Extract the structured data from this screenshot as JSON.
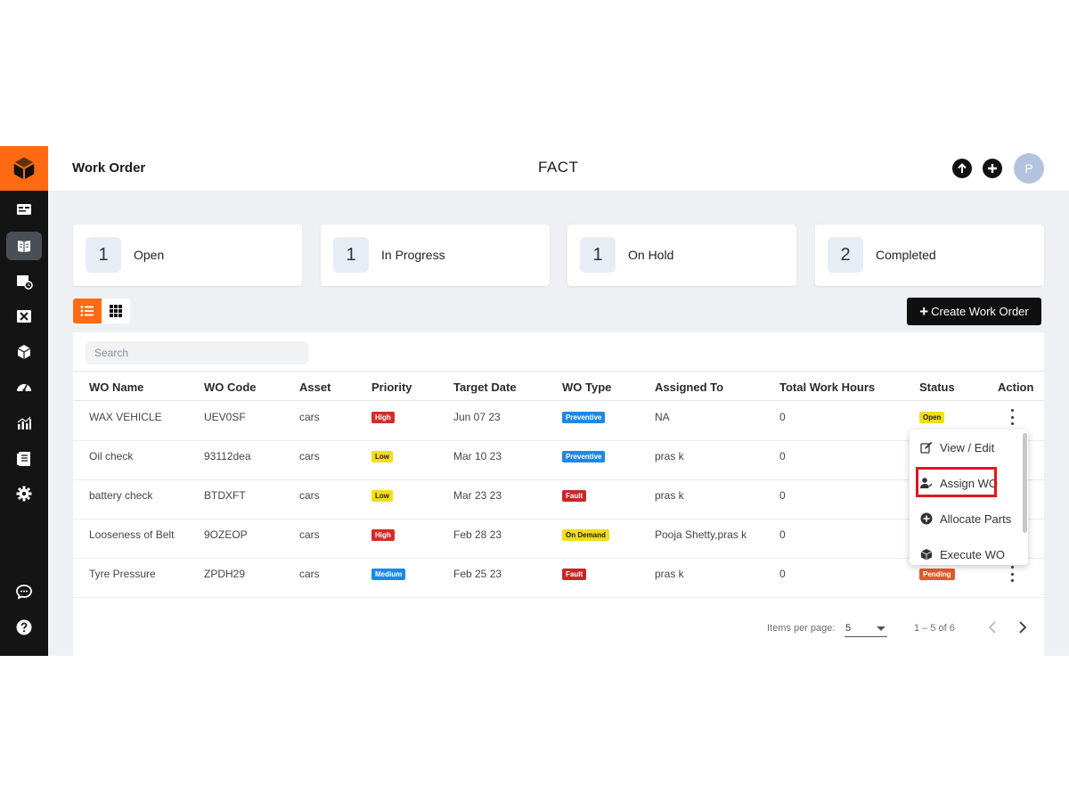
{
  "header": {
    "page_title": "Work Order",
    "center_title": "FACT",
    "avatar_initial": "P"
  },
  "stats": [
    {
      "count": "1",
      "label": "Open"
    },
    {
      "count": "1",
      "label": "In Progress"
    },
    {
      "count": "1",
      "label": "On Hold"
    },
    {
      "count": "2",
      "label": "Completed"
    }
  ],
  "toolbar": {
    "create_label": "Create Work Order"
  },
  "search": {
    "placeholder": "Search"
  },
  "table": {
    "columns": [
      "WO Name",
      "WO Code",
      "Asset",
      "Priority",
      "Target Date",
      "WO Type",
      "Assigned To",
      "Total Work Hours",
      "Status",
      "Action"
    ],
    "rows": [
      {
        "name": "WAX VEHICLE",
        "code": "UEV0SF",
        "asset": "cars",
        "priority": "High",
        "target": "Jun 07 23",
        "type": "Preventive",
        "assigned": "NA",
        "hours": "0",
        "status": "Open"
      },
      {
        "name": "Oil check",
        "code": "93112dea",
        "asset": "cars",
        "priority": "Low",
        "target": "Mar 10 23",
        "type": "Preventive",
        "assigned": "pras k",
        "hours": "0",
        "status": ""
      },
      {
        "name": "battery check",
        "code": "BTDXFT",
        "asset": "cars",
        "priority": "Low",
        "target": "Mar 23 23",
        "type": "Fault",
        "assigned": "pras k",
        "hours": "0",
        "status": ""
      },
      {
        "name": "Looseness of Belt",
        "code": "9OZEOP",
        "asset": "cars",
        "priority": "High",
        "target": "Feb 28 23",
        "type": "On Demand",
        "assigned": "Pooja Shetty,pras k",
        "hours": "0",
        "status": ""
      },
      {
        "name": "Tyre Pressure",
        "code": "ZPDH29",
        "asset": "cars",
        "priority": "Medium",
        "target": "Feb 25 23",
        "type": "Fault",
        "assigned": "pras k",
        "hours": "0",
        "status": "Pending"
      }
    ]
  },
  "pagination": {
    "items_per_page_label": "Items per page:",
    "items_per_page": "5",
    "range": "1 – 5 of 6"
  },
  "action_menu": {
    "items": [
      {
        "label": "View / Edit",
        "icon": "edit-icon"
      },
      {
        "label": "Assign WO",
        "icon": "assign-user-icon"
      },
      {
        "label": "Allocate Parts",
        "icon": "plus-circle-icon"
      },
      {
        "label": "Execute WO",
        "icon": "cube-icon"
      }
    ],
    "highlighted": "Assign WO"
  },
  "colors": {
    "accent": "#ff6a13",
    "sidebar": "#141414",
    "background": "#eef0f3",
    "highlight": "#e0161d"
  }
}
